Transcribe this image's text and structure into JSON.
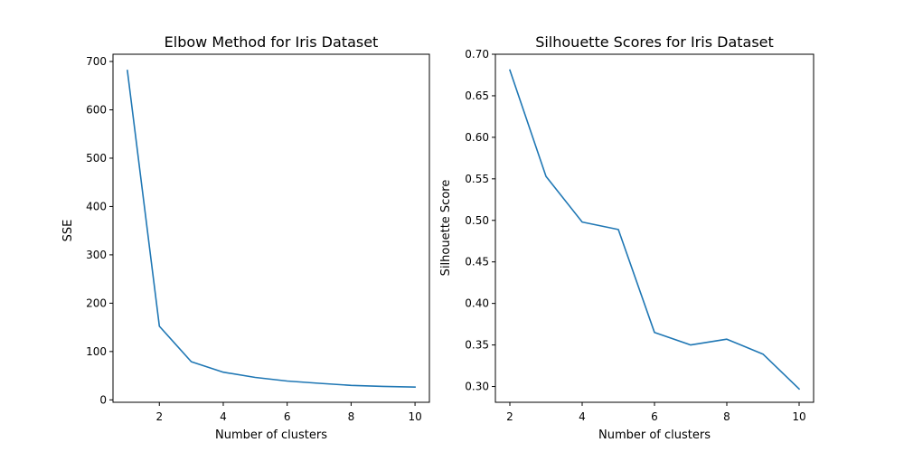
{
  "chart_data": [
    {
      "type": "line",
      "title": "Elbow Method for Iris Dataset",
      "xlabel": "Number of clusters",
      "ylabel": "SSE",
      "xlim": [
        0.55,
        10.45
      ],
      "ylim": [
        -5,
        715
      ],
      "xticks": [
        2,
        4,
        6,
        8,
        10
      ],
      "yticks": [
        0,
        100,
        200,
        300,
        400,
        500,
        600,
        700
      ],
      "grid": false,
      "color": "#1f77b4",
      "series": [
        {
          "x": [
            1,
            2,
            3,
            4,
            5,
            6,
            7,
            8,
            9,
            10
          ],
          "values": [
            681.4,
            152.3,
            78.9,
            57.2,
            46.4,
            39.0,
            34.3,
            29.9,
            28.0,
            26.4
          ]
        }
      ]
    },
    {
      "type": "line",
      "title": "Silhouette Scores for Iris Dataset",
      "xlabel": "Number of clusters",
      "ylabel": "Silhouette Score",
      "xlim": [
        1.6,
        10.4
      ],
      "ylim": [
        0.281,
        0.7
      ],
      "xticks": [
        2,
        4,
        6,
        8,
        10
      ],
      "yticks": [
        0.3,
        0.35,
        0.4,
        0.45,
        0.5,
        0.55,
        0.6,
        0.65,
        0.7
      ],
      "grid": false,
      "color": "#1f77b4",
      "series": [
        {
          "x": [
            2,
            3,
            4,
            5,
            6,
            7,
            8,
            9,
            10
          ],
          "values": [
            0.681,
            0.553,
            0.498,
            0.489,
            0.365,
            0.35,
            0.357,
            0.339,
            0.297
          ]
        }
      ]
    }
  ]
}
